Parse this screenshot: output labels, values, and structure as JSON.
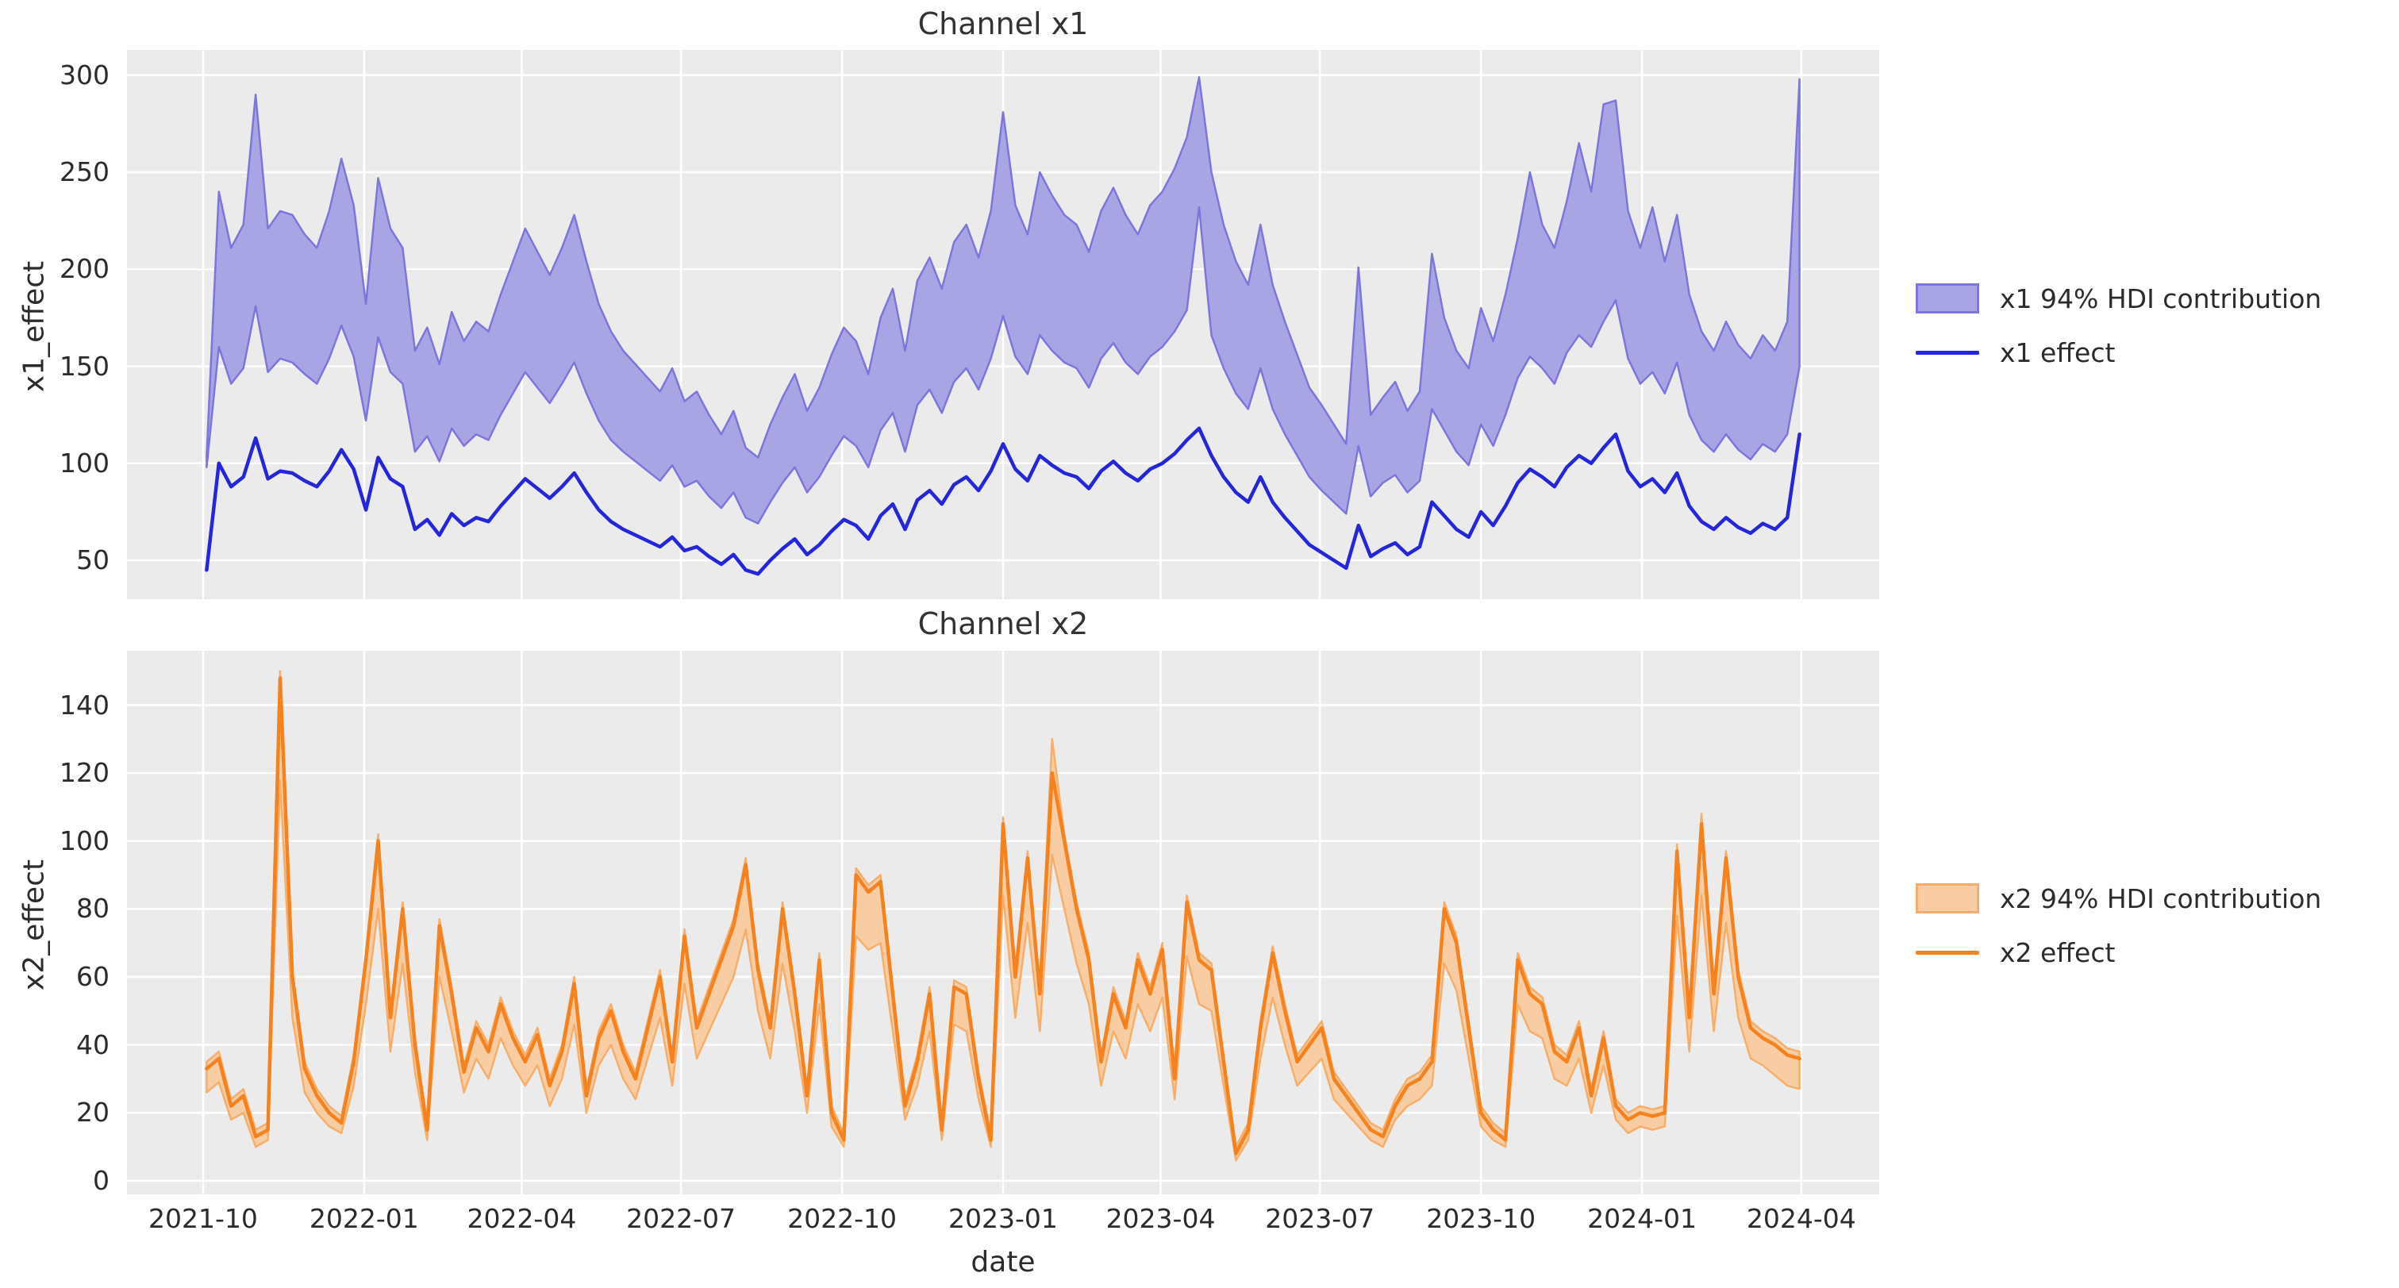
{
  "figure": {
    "background": "#ffffff",
    "axes_background": "#ebebeb",
    "grid_color": "#ffffff",
    "text_color": "#2b2b2b"
  },
  "x_axis": {
    "label": "date",
    "tick_labels": [
      "2021-10",
      "2022-01",
      "2022-04",
      "2022-07",
      "2022-10",
      "2023-01",
      "2023-04",
      "2023-07",
      "2023-10",
      "2024-01",
      "2024-04"
    ],
    "ticks": [
      {
        "label": "2021-10",
        "day_offset": -2
      },
      {
        "label": "2022-01",
        "day_offset": 90
      },
      {
        "label": "2022-04",
        "day_offset": 180
      },
      {
        "label": "2022-07",
        "day_offset": 271
      },
      {
        "label": "2022-10",
        "day_offset": 363
      },
      {
        "label": "2023-01",
        "day_offset": 455
      },
      {
        "label": "2023-04",
        "day_offset": 545
      },
      {
        "label": "2023-07",
        "day_offset": 636
      },
      {
        "label": "2023-10",
        "day_offset": 728
      },
      {
        "label": "2024-01",
        "day_offset": 820
      },
      {
        "label": "2024-04",
        "day_offset": 911
      }
    ],
    "freq_days": 7
  },
  "chart_data": [
    {
      "type": "area",
      "title": "Channel x1",
      "ylabel": "x1_effect",
      "xlabel": "date",
      "ylim": [
        30,
        313
      ],
      "yticks": [
        50,
        100,
        150,
        200,
        250,
        300
      ],
      "grid": true,
      "legend_position": "right-outside",
      "colors": {
        "line": "#2525DD",
        "band_fill": "#A9A5E5",
        "band_edge": "#7C76DC"
      },
      "legend_items": [
        {
          "type": "patch",
          "label": "x1 94% HDI contribution"
        },
        {
          "type": "line",
          "label": "x1 effect"
        }
      ],
      "series": [
        {
          "name": "x1 effect",
          "values": [
            45,
            100,
            88,
            93,
            113,
            92,
            96,
            95,
            91,
            88,
            96,
            107,
            97,
            76,
            103,
            92,
            88,
            66,
            71,
            63,
            74,
            68,
            72,
            70,
            78,
            85,
            92,
            87,
            82,
            88,
            95,
            85,
            76,
            70,
            66,
            63,
            60,
            57,
            62,
            55,
            57,
            52,
            48,
            53,
            45,
            43,
            50,
            56,
            61,
            53,
            58,
            65,
            71,
            68,
            61,
            73,
            79,
            66,
            81,
            86,
            79,
            89,
            93,
            86,
            96,
            110,
            97,
            91,
            104,
            99,
            95,
            93,
            87,
            96,
            101,
            95,
            91,
            97,
            100,
            105,
            112,
            118,
            104,
            93,
            85,
            80,
            93,
            80,
            72,
            65,
            58,
            54,
            50,
            46,
            68,
            52,
            56,
            59,
            53,
            57,
            80,
            73,
            66,
            62,
            75,
            68,
            78,
            90,
            97,
            93,
            88,
            98,
            104,
            100,
            108,
            115,
            96,
            88,
            92,
            85,
            95,
            78,
            70,
            66,
            72,
            67,
            64,
            69,
            66,
            72,
            115
          ]
        },
        {
          "name": "x1 94% HDI lower",
          "values": [
            98,
            160,
            141,
            149,
            181,
            147,
            154,
            152,
            146,
            141,
            154,
            171,
            155,
            122,
            165,
            147,
            141,
            106,
            114,
            101,
            118,
            109,
            115,
            112,
            125,
            136,
            147,
            139,
            131,
            141,
            152,
            136,
            122,
            112,
            106,
            101,
            96,
            91,
            99,
            88,
            91,
            83,
            77,
            85,
            72,
            69,
            80,
            90,
            98,
            85,
            93,
            104,
            114,
            109,
            98,
            117,
            126,
            106,
            130,
            138,
            126,
            142,
            149,
            138,
            154,
            176,
            155,
            146,
            166,
            158,
            152,
            149,
            139,
            154,
            162,
            152,
            146,
            155,
            160,
            168,
            179,
            232,
            166,
            149,
            136,
            128,
            149,
            128,
            115,
            104,
            93,
            86,
            80,
            74,
            109,
            83,
            90,
            94,
            85,
            91,
            128,
            117,
            106,
            99,
            120,
            109,
            125,
            144,
            155,
            149,
            141,
            157,
            166,
            160,
            173,
            184,
            154,
            141,
            147,
            136,
            152,
            125,
            112,
            106,
            115,
            107,
            102,
            110,
            106,
            115,
            150
          ]
        },
        {
          "name": "x1 94% HDI upper",
          "values": [
            104,
            240,
            211,
            223,
            290,
            221,
            230,
            228,
            218,
            211,
            230,
            257,
            233,
            182,
            247,
            221,
            211,
            158,
            170,
            151,
            178,
            163,
            173,
            168,
            187,
            204,
            221,
            209,
            197,
            211,
            228,
            204,
            182,
            168,
            158,
            151,
            144,
            137,
            149,
            132,
            137,
            125,
            115,
            127,
            108,
            103,
            120,
            134,
            146,
            127,
            139,
            156,
            170,
            163,
            146,
            175,
            190,
            158,
            194,
            206,
            190,
            214,
            223,
            206,
            230,
            281,
            233,
            218,
            250,
            238,
            228,
            223,
            209,
            230,
            242,
            228,
            218,
            233,
            240,
            252,
            268,
            299,
            250,
            223,
            204,
            192,
            223,
            192,
            173,
            156,
            139,
            130,
            120,
            110,
            201,
            125,
            134,
            142,
            127,
            137,
            208,
            175,
            158,
            149,
            180,
            163,
            187,
            216,
            250,
            223,
            211,
            235,
            265,
            240,
            285,
            287,
            230,
            211,
            232,
            204,
            228,
            187,
            168,
            158,
            173,
            161,
            154,
            166,
            158,
            173,
            298
          ]
        }
      ]
    },
    {
      "type": "area",
      "title": "Channel x2",
      "ylabel": "x2_effect",
      "xlabel": "date",
      "ylim": [
        -4,
        156
      ],
      "yticks": [
        0,
        20,
        40,
        60,
        80,
        100,
        120,
        140
      ],
      "grid": true,
      "legend_position": "right-outside",
      "colors": {
        "line": "#F5821E",
        "band_fill": "#F9CDA3",
        "band_edge": "#F7AE6B"
      },
      "legend_items": [
        {
          "type": "patch",
          "label": "x2 94% HDI contribution"
        },
        {
          "type": "line",
          "label": "x2 effect"
        }
      ],
      "series": [
        {
          "name": "x2 effect",
          "values": [
            33,
            36,
            22,
            25,
            13,
            15,
            148,
            60,
            33,
            25,
            20,
            17,
            35,
            65,
            100,
            48,
            80,
            40,
            15,
            75,
            55,
            32,
            45,
            38,
            52,
            42,
            35,
            43,
            28,
            38,
            58,
            25,
            42,
            50,
            38,
            30,
            45,
            60,
            35,
            72,
            45,
            55,
            65,
            75,
            93,
            62,
            45,
            80,
            55,
            25,
            65,
            20,
            12,
            90,
            85,
            88,
            55,
            22,
            35,
            55,
            15,
            57,
            55,
            30,
            12,
            105,
            60,
            95,
            55,
            120,
            100,
            80,
            65,
            35,
            55,
            45,
            65,
            55,
            68,
            30,
            82,
            65,
            62,
            35,
            8,
            15,
            45,
            67,
            50,
            35,
            40,
            45,
            30,
            25,
            20,
            15,
            13,
            22,
            28,
            30,
            35,
            80,
            70,
            45,
            20,
            15,
            12,
            65,
            55,
            52,
            38,
            35,
            45,
            25,
            42,
            22,
            18,
            20,
            19,
            20,
            97,
            48,
            105,
            55,
            95,
            60,
            45,
            42,
            40,
            37,
            36
          ]
        },
        {
          "name": "x2 94% HDI lower",
          "values": [
            26,
            29,
            18,
            20,
            10,
            12,
            118,
            48,
            26,
            20,
            16,
            14,
            28,
            52,
            80,
            38,
            64,
            32,
            12,
            60,
            44,
            26,
            36,
            30,
            42,
            34,
            28,
            34,
            22,
            30,
            46,
            20,
            34,
            40,
            30,
            24,
            36,
            48,
            28,
            58,
            36,
            44,
            52,
            60,
            74,
            50,
            36,
            64,
            44,
            20,
            52,
            16,
            10,
            72,
            68,
            70,
            44,
            18,
            28,
            44,
            12,
            46,
            44,
            24,
            10,
            84,
            48,
            76,
            44,
            96,
            80,
            64,
            52,
            28,
            44,
            36,
            52,
            44,
            54,
            24,
            66,
            52,
            50,
            28,
            6,
            12,
            36,
            54,
            40,
            28,
            32,
            36,
            24,
            20,
            16,
            12,
            10,
            18,
            22,
            24,
            28,
            64,
            56,
            36,
            16,
            12,
            10,
            52,
            44,
            42,
            30,
            28,
            36,
            20,
            34,
            18,
            14,
            16,
            15,
            16,
            78,
            38,
            84,
            44,
            76,
            48,
            36,
            34,
            31,
            28,
            27
          ]
        },
        {
          "name": "x2 94% HDI upper",
          "values": [
            35,
            38,
            24,
            27,
            15,
            17,
            150,
            62,
            35,
            27,
            22,
            19,
            37,
            67,
            102,
            50,
            82,
            42,
            17,
            77,
            57,
            34,
            47,
            40,
            54,
            44,
            37,
            45,
            30,
            40,
            60,
            27,
            44,
            52,
            40,
            32,
            47,
            62,
            37,
            74,
            47,
            57,
            67,
            77,
            95,
            64,
            47,
            82,
            57,
            27,
            67,
            22,
            14,
            92,
            87,
            90,
            57,
            24,
            37,
            57,
            17,
            59,
            57,
            32,
            14,
            107,
            62,
            97,
            57,
            130,
            102,
            82,
            67,
            37,
            57,
            47,
            67,
            57,
            70,
            32,
            84,
            67,
            64,
            37,
            10,
            17,
            47,
            69,
            52,
            37,
            42,
            47,
            32,
            27,
            22,
            17,
            15,
            24,
            30,
            32,
            37,
            82,
            72,
            47,
            22,
            17,
            14,
            67,
            57,
            54,
            40,
            37,
            47,
            27,
            44,
            24,
            20,
            22,
            21,
            22,
            99,
            50,
            108,
            57,
            97,
            62,
            47,
            44,
            42,
            39,
            38
          ]
        }
      ]
    }
  ]
}
